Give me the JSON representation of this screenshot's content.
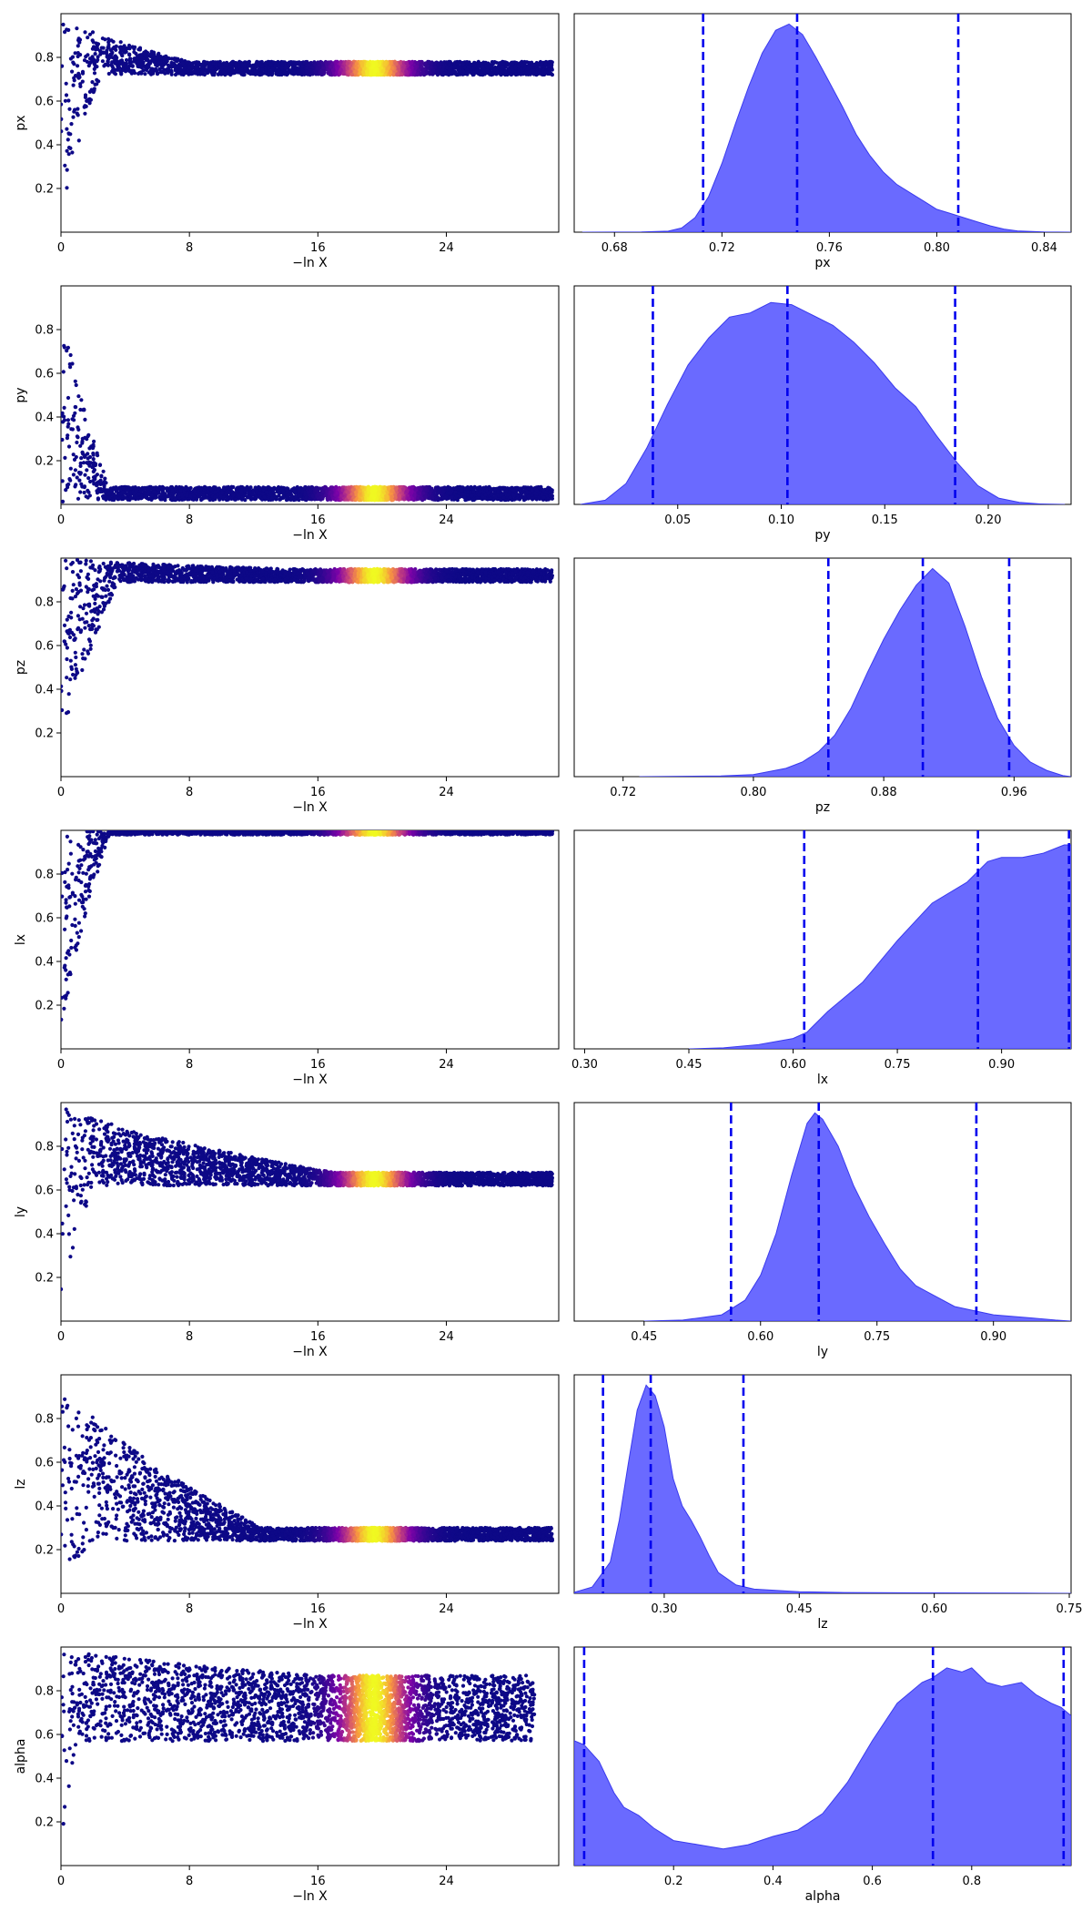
{
  "chart_data": [
    {
      "param": "px",
      "type": "scatter",
      "xlabel": "−ln X",
      "ylabel": "px",
      "xlim": [
        0,
        31
      ],
      "ylim": [
        0,
        1
      ],
      "xticks": [
        0,
        8,
        16,
        24
      ],
      "yticks": [
        0.2,
        0.4,
        0.6,
        0.8
      ],
      "data": {
        "start": 0.35,
        "end": 0.75,
        "end_spread": 0.03,
        "left_lo": 0.0,
        "left_hi": 1.0,
        "left_lo_knee": 2.5,
        "left_hi_knee": 8.0,
        "x_end": 30.6,
        "peak_x": 19.5
      }
    },
    {
      "param": "px",
      "type": "area",
      "xlabel": "px",
      "ylabel": "",
      "xlim": [
        0.665,
        0.85
      ],
      "ylim": [
        0,
        1.05
      ],
      "xticks": [
        0.68,
        0.72,
        0.76,
        0.8,
        0.84
      ],
      "vlines": [
        0.713,
        0.748,
        0.808
      ],
      "curve": [
        [
          0.668,
          0
        ],
        [
          0.69,
          0.001
        ],
        [
          0.7,
          0.005
        ],
        [
          0.705,
          0.02
        ],
        [
          0.71,
          0.07
        ],
        [
          0.715,
          0.17
        ],
        [
          0.72,
          0.33
        ],
        [
          0.725,
          0.52
        ],
        [
          0.73,
          0.7
        ],
        [
          0.735,
          0.86
        ],
        [
          0.74,
          0.97
        ],
        [
          0.745,
          1.0
        ],
        [
          0.75,
          0.95
        ],
        [
          0.755,
          0.84
        ],
        [
          0.76,
          0.72
        ],
        [
          0.765,
          0.6
        ],
        [
          0.77,
          0.47
        ],
        [
          0.775,
          0.37
        ],
        [
          0.78,
          0.29
        ],
        [
          0.785,
          0.23
        ],
        [
          0.79,
          0.19
        ],
        [
          0.795,
          0.15
        ],
        [
          0.8,
          0.11
        ],
        [
          0.805,
          0.09
        ],
        [
          0.81,
          0.07
        ],
        [
          0.815,
          0.05
        ],
        [
          0.82,
          0.03
        ],
        [
          0.825,
          0.015
        ],
        [
          0.83,
          0.006
        ],
        [
          0.84,
          0.001
        ],
        [
          0.85,
          0
        ]
      ]
    },
    {
      "param": "py",
      "type": "scatter",
      "xlabel": "−ln X",
      "ylabel": "py",
      "xlim": [
        0,
        31
      ],
      "ylim": [
        0,
        1
      ],
      "xticks": [
        0,
        8,
        16,
        24
      ],
      "yticks": [
        0.2,
        0.4,
        0.6,
        0.8
      ],
      "data": {
        "start": 0.3,
        "end": 0.05,
        "end_spread": 0.03,
        "left_lo": 0.0,
        "left_hi": 1.0,
        "left_lo_knee": 0.5,
        "left_hi_knee": 3.0,
        "x_end": 30.6,
        "peak_x": 19.5
      }
    },
    {
      "param": "py",
      "type": "area",
      "xlabel": "py",
      "ylabel": "",
      "xlim": [
        0.0,
        0.24
      ],
      "ylim": [
        0,
        1.05
      ],
      "xticks": [
        0.05,
        0.1,
        0.15,
        0.2
      ],
      "vlines": [
        0.038,
        0.103,
        0.184
      ],
      "curve": [
        [
          0.003,
          0
        ],
        [
          0.015,
          0.02
        ],
        [
          0.025,
          0.1
        ],
        [
          0.035,
          0.27
        ],
        [
          0.045,
          0.48
        ],
        [
          0.055,
          0.67
        ],
        [
          0.065,
          0.8
        ],
        [
          0.075,
          0.9
        ],
        [
          0.085,
          0.92
        ],
        [
          0.095,
          0.97
        ],
        [
          0.105,
          0.96
        ],
        [
          0.115,
          0.91
        ],
        [
          0.125,
          0.86
        ],
        [
          0.135,
          0.78
        ],
        [
          0.145,
          0.68
        ],
        [
          0.155,
          0.56
        ],
        [
          0.165,
          0.47
        ],
        [
          0.175,
          0.33
        ],
        [
          0.185,
          0.2
        ],
        [
          0.195,
          0.09
        ],
        [
          0.205,
          0.03
        ],
        [
          0.215,
          0.01
        ],
        [
          0.225,
          0.002
        ],
        [
          0.237,
          0
        ]
      ]
    },
    {
      "param": "pz",
      "type": "scatter",
      "xlabel": "−ln X",
      "ylabel": "pz",
      "xlim": [
        0,
        31
      ],
      "ylim": [
        0,
        1
      ],
      "xticks": [
        0,
        8,
        16,
        24
      ],
      "yticks": [
        0.2,
        0.4,
        0.6,
        0.8
      ],
      "data": {
        "start": 0.7,
        "end": 0.92,
        "end_spread": 0.03,
        "left_lo": 0.0,
        "left_hi": 1.0,
        "left_lo_knee": 3.5,
        "left_hi_knee": 14.0,
        "x_end": 30.6,
        "peak_x": 19.5
      }
    },
    {
      "param": "pz",
      "type": "area",
      "xlabel": "pz",
      "ylabel": "",
      "xlim": [
        0.69,
        0.995
      ],
      "ylim": [
        0,
        1.05
      ],
      "xticks": [
        0.72,
        0.8,
        0.88,
        0.96
      ],
      "vlines": [
        0.846,
        0.904,
        0.957
      ],
      "curve": [
        [
          0.73,
          0
        ],
        [
          0.78,
          0.003
        ],
        [
          0.8,
          0.01
        ],
        [
          0.82,
          0.04
        ],
        [
          0.83,
          0.07
        ],
        [
          0.84,
          0.12
        ],
        [
          0.85,
          0.2
        ],
        [
          0.86,
          0.33
        ],
        [
          0.87,
          0.5
        ],
        [
          0.88,
          0.66
        ],
        [
          0.89,
          0.8
        ],
        [
          0.9,
          0.92
        ],
        [
          0.91,
          1.0
        ],
        [
          0.92,
          0.93
        ],
        [
          0.93,
          0.72
        ],
        [
          0.94,
          0.48
        ],
        [
          0.95,
          0.28
        ],
        [
          0.96,
          0.15
        ],
        [
          0.97,
          0.07
        ],
        [
          0.98,
          0.03
        ],
        [
          0.99,
          0.005
        ],
        [
          0.995,
          0
        ]
      ]
    },
    {
      "param": "lx",
      "type": "scatter",
      "xlabel": "−ln X",
      "ylabel": "lx",
      "xlim": [
        0,
        31
      ],
      "ylim": [
        0,
        1
      ],
      "xticks": [
        0,
        8,
        16,
        24
      ],
      "yticks": [
        0.2,
        0.4,
        0.6,
        0.8
      ],
      "data": {
        "start": 0.6,
        "end": 1.0,
        "end_spread": 0.02,
        "left_lo": 0.0,
        "left_hi": 1.0,
        "left_lo_knee": 3.0,
        "left_hi_knee": 18.0,
        "x_end": 30.6,
        "peak_x": 19.5
      }
    },
    {
      "param": "lx",
      "type": "area",
      "xlabel": "lx",
      "ylabel": "",
      "xlim": [
        0.285,
        1.0
      ],
      "ylim": [
        0,
        1.05
      ],
      "xticks": [
        0.3,
        0.45,
        0.6,
        0.75,
        0.9
      ],
      "vlines": [
        0.616,
        0.866,
        0.997
      ],
      "curve": [
        [
          0.45,
          0
        ],
        [
          0.5,
          0.005
        ],
        [
          0.55,
          0.02
        ],
        [
          0.6,
          0.05
        ],
        [
          0.62,
          0.08
        ],
        [
          0.65,
          0.18
        ],
        [
          0.7,
          0.32
        ],
        [
          0.75,
          0.52
        ],
        [
          0.8,
          0.7
        ],
        [
          0.85,
          0.8
        ],
        [
          0.88,
          0.9
        ],
        [
          0.9,
          0.92
        ],
        [
          0.93,
          0.92
        ],
        [
          0.96,
          0.94
        ],
        [
          0.99,
          0.98
        ],
        [
          1.0,
          0.98
        ]
      ]
    },
    {
      "param": "ly",
      "type": "scatter",
      "xlabel": "−ln X",
      "ylabel": "ly",
      "xlim": [
        0,
        31
      ],
      "ylim": [
        0,
        1
      ],
      "xticks": [
        0,
        8,
        16,
        24
      ],
      "yticks": [
        0.2,
        0.4,
        0.6,
        0.8
      ],
      "data": {
        "start": 0.6,
        "end": 0.65,
        "end_spread": 0.03,
        "left_lo": 0.0,
        "left_hi": 1.0,
        "left_lo_knee": 2.0,
        "left_hi_knee": 17.0,
        "x_end": 30.6,
        "peak_x": 19.5
      }
    },
    {
      "param": "ly",
      "type": "area",
      "xlabel": "ly",
      "ylabel": "",
      "xlim": [
        0.36,
        1.0
      ],
      "ylim": [
        0,
        1.05
      ],
      "xticks": [
        0.45,
        0.6,
        0.75,
        0.9
      ],
      "vlines": [
        0.562,
        0.675,
        0.878
      ],
      "curve": [
        [
          0.45,
          0
        ],
        [
          0.5,
          0.005
        ],
        [
          0.55,
          0.03
        ],
        [
          0.58,
          0.1
        ],
        [
          0.6,
          0.22
        ],
        [
          0.62,
          0.42
        ],
        [
          0.64,
          0.7
        ],
        [
          0.66,
          0.95
        ],
        [
          0.67,
          1.0
        ],
        [
          0.68,
          0.97
        ],
        [
          0.7,
          0.84
        ],
        [
          0.72,
          0.65
        ],
        [
          0.74,
          0.5
        ],
        [
          0.76,
          0.37
        ],
        [
          0.78,
          0.25
        ],
        [
          0.8,
          0.17
        ],
        [
          0.85,
          0.07
        ],
        [
          0.9,
          0.03
        ],
        [
          0.95,
          0.015
        ],
        [
          0.98,
          0.005
        ],
        [
          1.0,
          0
        ]
      ]
    },
    {
      "param": "lz",
      "type": "scatter",
      "xlabel": "−ln X",
      "ylabel": "lz",
      "xlim": [
        0,
        31
      ],
      "ylim": [
        0,
        1
      ],
      "xticks": [
        0,
        8,
        16,
        24
      ],
      "yticks": [
        0.2,
        0.4,
        0.6,
        0.8
      ],
      "data": {
        "start": 0.4,
        "end": 0.27,
        "end_spread": 0.03,
        "left_lo": 0.0,
        "left_hi": 1.0,
        "left_lo_knee": 2.0,
        "left_hi_knee": 12.5,
        "x_end": 30.6,
        "peak_x": 19.5
      }
    },
    {
      "param": "lz",
      "type": "area",
      "xlabel": "lz",
      "ylabel": "",
      "xlim": [
        0.2,
        0.752
      ],
      "ylim": [
        0,
        1.05
      ],
      "xticks": [
        0.3,
        0.45,
        0.6,
        0.75
      ],
      "vlines": [
        0.232,
        0.285,
        0.388
      ],
      "curve": [
        [
          0.2,
          0.005
        ],
        [
          0.22,
          0.03
        ],
        [
          0.24,
          0.15
        ],
        [
          0.25,
          0.35
        ],
        [
          0.26,
          0.62
        ],
        [
          0.27,
          0.88
        ],
        [
          0.28,
          1.0
        ],
        [
          0.29,
          0.95
        ],
        [
          0.3,
          0.8
        ],
        [
          0.31,
          0.55
        ],
        [
          0.32,
          0.42
        ],
        [
          0.33,
          0.35
        ],
        [
          0.34,
          0.27
        ],
        [
          0.35,
          0.18
        ],
        [
          0.36,
          0.1
        ],
        [
          0.38,
          0.04
        ],
        [
          0.4,
          0.02
        ],
        [
          0.45,
          0.008
        ],
        [
          0.5,
          0.004
        ],
        [
          0.6,
          0.002
        ],
        [
          0.7,
          0.001
        ],
        [
          0.752,
          0
        ]
      ]
    },
    {
      "param": "alpha",
      "type": "scatter",
      "xlabel": "−ln X",
      "ylabel": "alpha",
      "xlim": [
        0,
        31
      ],
      "ylim": [
        0,
        1
      ],
      "xticks": [
        0,
        8,
        16,
        24
      ],
      "yticks": [
        0.2,
        0.4,
        0.6,
        0.8
      ],
      "data": {
        "start": 0.5,
        "end": 0.72,
        "end_spread": 0.15,
        "left_lo": 0.0,
        "left_hi": 1.0,
        "left_lo_knee": 1.0,
        "left_hi_knee": 16.0,
        "x_end": 29.5,
        "peak_x": 19.5
      }
    },
    {
      "param": "alpha",
      "type": "area",
      "xlabel": "alpha",
      "ylabel": "",
      "xlim": [
        0.0,
        1.0
      ],
      "ylim": [
        0,
        1.05
      ],
      "xticks": [
        0.2,
        0.4,
        0.6,
        0.8
      ],
      "vlines": [
        0.02,
        0.722,
        0.985
      ],
      "curve": [
        [
          0.0,
          0.6
        ],
        [
          0.02,
          0.58
        ],
        [
          0.05,
          0.5
        ],
        [
          0.08,
          0.35
        ],
        [
          0.1,
          0.28
        ],
        [
          0.13,
          0.24
        ],
        [
          0.16,
          0.18
        ],
        [
          0.2,
          0.12
        ],
        [
          0.25,
          0.1
        ],
        [
          0.3,
          0.08
        ],
        [
          0.35,
          0.1
        ],
        [
          0.4,
          0.14
        ],
        [
          0.45,
          0.17
        ],
        [
          0.5,
          0.25
        ],
        [
          0.55,
          0.4
        ],
        [
          0.6,
          0.6
        ],
        [
          0.65,
          0.78
        ],
        [
          0.7,
          0.88
        ],
        [
          0.72,
          0.9
        ],
        [
          0.75,
          0.95
        ],
        [
          0.78,
          0.93
        ],
        [
          0.8,
          0.95
        ],
        [
          0.83,
          0.88
        ],
        [
          0.86,
          0.86
        ],
        [
          0.9,
          0.88
        ],
        [
          0.93,
          0.82
        ],
        [
          0.96,
          0.78
        ],
        [
          0.98,
          0.76
        ],
        [
          1.0,
          0.72
        ]
      ]
    }
  ],
  "colors": {
    "fill": "#5555ff",
    "vline": "#0000ee",
    "cmap_low": "#0d0887",
    "cmap_mid": "#cc4778",
    "cmap_high": "#f0f921"
  }
}
